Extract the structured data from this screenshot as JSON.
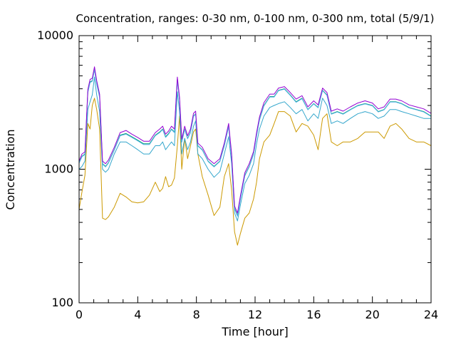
{
  "chart_data": {
    "type": "line",
    "title": "Concentration, ranges: 0-30 nm, 0-100 nm, 0-300 nm, total (5/9/1)",
    "xlabel": "Time [hour]",
    "ylabel": "Concentration",
    "xlim": [
      0,
      24
    ],
    "ylim": [
      100,
      10000
    ],
    "yscale": "log",
    "grid": false,
    "xticks": [
      "0",
      "4",
      "8",
      "12",
      "16",
      "20",
      "24"
    ],
    "yticks": [
      "100",
      "1000",
      "10000"
    ],
    "x": [
      0,
      0.2,
      0.4,
      0.6,
      0.75,
      0.9,
      1.05,
      1.2,
      1.4,
      1.6,
      1.8,
      2.0,
      2.4,
      2.8,
      3.2,
      3.6,
      4.0,
      4.4,
      4.8,
      5.2,
      5.5,
      5.7,
      5.9,
      6.1,
      6.3,
      6.5,
      6.7,
      6.85,
      7.0,
      7.2,
      7.4,
      7.6,
      7.8,
      7.95,
      8.1,
      8.4,
      8.8,
      9.2,
      9.6,
      9.9,
      10.2,
      10.4,
      10.6,
      10.8,
      11.0,
      11.3,
      11.6,
      11.9,
      12.1,
      12.3,
      12.6,
      13.0,
      13.3,
      13.6,
      14.0,
      14.4,
      14.8,
      15.2,
      15.6,
      16.0,
      16.3,
      16.6,
      16.9,
      17.2,
      17.6,
      18.0,
      18.5,
      19.0,
      19.5,
      20.0,
      20.4,
      20.8,
      21.2,
      21.6,
      22.0,
      22.5,
      23.0,
      23.5,
      24.0
    ],
    "series": [
      {
        "color": "#cc9900",
        "values": [
          500,
          680,
          900,
          2200,
          2000,
          3000,
          3400,
          2800,
          2000,
          430,
          420,
          440,
          520,
          660,
          620,
          570,
          560,
          570,
          640,
          800,
          680,
          720,
          880,
          740,
          760,
          860,
          1500,
          2500,
          1000,
          1700,
          1200,
          1500,
          1900,
          2000,
          1300,
          880,
          640,
          450,
          520,
          880,
          1100,
          700,
          340,
          270,
          330,
          430,
          470,
          600,
          800,
          1200,
          1600,
          1800,
          2200,
          2700,
          2700,
          2500,
          1900,
          2200,
          2100,
          1800,
          1400,
          2400,
          2600,
          1600,
          1500,
          1600,
          1600,
          1700,
          1900,
          1900,
          1900,
          1700,
          2100,
          2200,
          2000,
          1700,
          1600,
          1600,
          1500
        ]
      },
      {
        "color": "#33a6cc",
        "values": [
          1000,
          1050,
          1150,
          2800,
          3200,
          3600,
          4900,
          3600,
          2700,
          1000,
          950,
          1000,
          1300,
          1600,
          1600,
          1500,
          1400,
          1300,
          1300,
          1500,
          1500,
          1600,
          1400,
          1500,
          1600,
          1500,
          3800,
          2700,
          1300,
          1700,
          1400,
          1600,
          2100,
          2300,
          1300,
          1200,
          1000,
          870,
          960,
          1300,
          1750,
          1100,
          470,
          410,
          540,
          780,
          900,
          1100,
          1550,
          2000,
          2500,
          2900,
          3000,
          3100,
          3200,
          2900,
          2600,
          2800,
          2300,
          2600,
          2400,
          3400,
          3000,
          2200,
          2300,
          2200,
          2400,
          2600,
          2700,
          2600,
          2400,
          2500,
          2800,
          2800,
          2700,
          2600,
          2500,
          2400,
          2400
        ]
      },
      {
        "color": "#009e73",
        "values": [
          1120,
          1250,
          1300,
          3800,
          4500,
          4600,
          5600,
          4400,
          3500,
          1100,
          1050,
          1120,
          1400,
          1800,
          1850,
          1750,
          1650,
          1550,
          1550,
          1800,
          1900,
          2000,
          1750,
          1850,
          2000,
          1900,
          4700,
          3300,
          1600,
          2000,
          1700,
          1900,
          2500,
          2600,
          1500,
          1400,
          1150,
          1050,
          1150,
          1500,
          2100,
          1250,
          510,
          450,
          600,
          900,
          1050,
          1300,
          1800,
          2350,
          3000,
          3500,
          3500,
          3900,
          4000,
          3600,
          3200,
          3400,
          2800,
          3100,
          2900,
          3900,
          3600,
          2600,
          2700,
          2600,
          2800,
          3000,
          3100,
          3000,
          2700,
          2800,
          3200,
          3200,
          3100,
          2900,
          2800,
          2700,
          2500
        ]
      },
      {
        "color": "#56b4e9",
        "values": [
          1110,
          1240,
          1290,
          3750,
          4450,
          4550,
          5550,
          4350,
          3450,
          1090,
          1040,
          1110,
          1390,
          1780,
          1830,
          1730,
          1630,
          1530,
          1530,
          1780,
          1880,
          1980,
          1730,
          1830,
          1980,
          1880,
          4650,
          3270,
          1590,
          1980,
          1690,
          1880,
          2480,
          2580,
          1490,
          1390,
          1140,
          1040,
          1140,
          1490,
          2080,
          1240,
          505,
          445,
          595,
          890,
          1040,
          1290,
          1780,
          2330,
          2970,
          3470,
          3470,
          3870,
          3970,
          3570,
          3170,
          3370,
          2780,
          3080,
          2880,
          3870,
          3570,
          2580,
          2680,
          2580,
          2780,
          2980,
          3080,
          2980,
          2680,
          2780,
          3180,
          3180,
          3080,
          2880,
          2780,
          2680,
          2480
        ]
      },
      {
        "color": "#9400d3",
        "values": [
          1150,
          1300,
          1350,
          3950,
          4700,
          4800,
          5850,
          4600,
          3650,
          1150,
          1100,
          1170,
          1460,
          1880,
          1950,
          1830,
          1730,
          1620,
          1620,
          1880,
          2000,
          2100,
          1830,
          1930,
          2100,
          2000,
          4900,
          3450,
          1680,
          2100,
          1780,
          2000,
          2620,
          2720,
          1570,
          1460,
          1200,
          1100,
          1200,
          1570,
          2200,
          1300,
          530,
          470,
          630,
          940,
          1100,
          1360,
          1880,
          2460,
          3150,
          3650,
          3650,
          4050,
          4150,
          3750,
          3350,
          3550,
          2930,
          3250,
          3030,
          4050,
          3750,
          2720,
          2830,
          2720,
          2930,
          3130,
          3250,
          3130,
          2830,
          2930,
          3350,
          3350,
          3250,
          3030,
          2930,
          2830,
          2620
        ]
      }
    ]
  }
}
